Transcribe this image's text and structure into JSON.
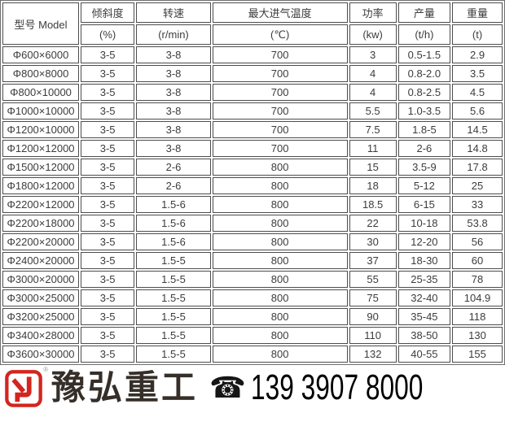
{
  "chart_data": {
    "type": "table",
    "header": {
      "model_label": "型号 Model",
      "columns": [
        {
          "title": "倾斜度",
          "unit": "(%)"
        },
        {
          "title": "转速",
          "unit": "(r/min)"
        },
        {
          "title": "最大进气温度",
          "unit": "(℃)"
        },
        {
          "title": "功率",
          "unit": "(kw)"
        },
        {
          "title": "产量",
          "unit": "(t/h)"
        },
        {
          "title": "重量",
          "unit": "(t)"
        }
      ]
    },
    "rows": [
      [
        "Φ600×6000",
        "3-5",
        "3-8",
        "700",
        "3",
        "0.5-1.5",
        "2.9"
      ],
      [
        "Φ800×8000",
        "3-5",
        "3-8",
        "700",
        "4",
        "0.8-2.0",
        "3.5"
      ],
      [
        "Φ800×10000",
        "3-5",
        "3-8",
        "700",
        "4",
        "0.8-2.5",
        "4.5"
      ],
      [
        "Φ1000×10000",
        "3-5",
        "3-8",
        "700",
        "5.5",
        "1.0-3.5",
        "5.6"
      ],
      [
        "Φ1200×10000",
        "3-5",
        "3-8",
        "700",
        "7.5",
        "1.8-5",
        "14.5"
      ],
      [
        "Φ1200×12000",
        "3-5",
        "3-8",
        "700",
        "11",
        "2-6",
        "14.8"
      ],
      [
        "Φ1500×12000",
        "3-5",
        "2-6",
        "800",
        "15",
        "3.5-9",
        "17.8"
      ],
      [
        "Φ1800×12000",
        "3-5",
        "2-6",
        "800",
        "18",
        "5-12",
        "25"
      ],
      [
        "Φ2200×12000",
        "3-5",
        "1.5-6",
        "800",
        "18.5",
        "6-15",
        "33"
      ],
      [
        "Φ2200×18000",
        "3-5",
        "1.5-6",
        "800",
        "22",
        "10-18",
        "53.8"
      ],
      [
        "Φ2200×20000",
        "3-5",
        "1.5-6",
        "800",
        "30",
        "12-20",
        "56"
      ],
      [
        "Φ2400×20000",
        "3-5",
        "1.5-5",
        "800",
        "37",
        "18-30",
        "60"
      ],
      [
        "Φ3000×20000",
        "3-5",
        "1.5-5",
        "800",
        "55",
        "25-35",
        "78"
      ],
      [
        "Φ3000×25000",
        "3-5",
        "1.5-5",
        "800",
        "75",
        "32-40",
        "104.9"
      ],
      [
        "Φ3200×25000",
        "3-5",
        "1.5-5",
        "800",
        "90",
        "35-45",
        "118"
      ],
      [
        "Φ3400×28000",
        "3-5",
        "1.5-5",
        "800",
        "110",
        "38-50",
        "130"
      ],
      [
        "Φ3600×30000",
        "3-5",
        "1.5-5",
        "800",
        "132",
        "40-55",
        "155"
      ]
    ]
  },
  "footer": {
    "brand": "豫弘重工",
    "registered_mark": "®",
    "phone_icon": "☎",
    "phone": "139 3907 8000"
  },
  "colors": {
    "table_border": "#4d4d4d",
    "table_text": "#3c3c3c",
    "brand_text": "#362f29",
    "logo_red": "#d3251f",
    "phone_text": "#000000"
  }
}
